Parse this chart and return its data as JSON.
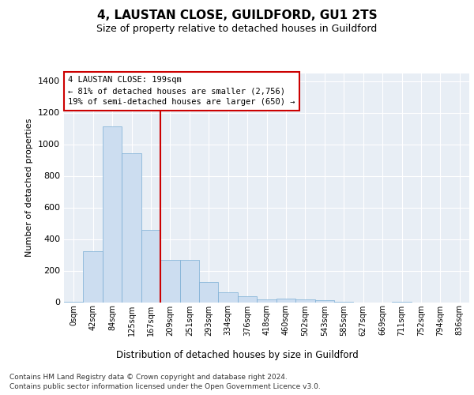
{
  "title": "4, LAUSTAN CLOSE, GUILDFORD, GU1 2TS",
  "subtitle": "Size of property relative to detached houses in Guildford",
  "xlabel": "Distribution of detached houses by size in Guildford",
  "ylabel": "Number of detached properties",
  "footnote1": "Contains HM Land Registry data © Crown copyright and database right 2024.",
  "footnote2": "Contains public sector information licensed under the Open Government Licence v3.0.",
  "bar_color": "#ccddf0",
  "bar_edge_color": "#7aadd4",
  "vline_color": "#cc0000",
  "vline_x": 4.5,
  "annotation_text": "4 LAUSTAN CLOSE: 199sqm\n← 81% of detached houses are smaller (2,756)\n19% of semi-detached houses are larger (650) →",
  "annotation_box_color": "#cc0000",
  "bin_labels": [
    "0sqm",
    "42sqm",
    "84sqm",
    "125sqm",
    "167sqm",
    "209sqm",
    "251sqm",
    "293sqm",
    "334sqm",
    "376sqm",
    "418sqm",
    "460sqm",
    "502sqm",
    "543sqm",
    "585sqm",
    "627sqm",
    "669sqm",
    "711sqm",
    "752sqm",
    "794sqm",
    "836sqm"
  ],
  "bar_heights": [
    5,
    325,
    1115,
    945,
    460,
    270,
    270,
    130,
    65,
    40,
    20,
    25,
    20,
    15,
    5,
    0,
    0,
    5,
    0,
    0,
    0
  ],
  "ylim": [
    0,
    1450
  ],
  "yticks": [
    0,
    200,
    400,
    600,
    800,
    1000,
    1200,
    1400
  ],
  "background_color": "#e8eef5",
  "plot_background": "#ffffff",
  "grid_color": "#ffffff",
  "title_fontsize": 11,
  "subtitle_fontsize": 9,
  "ylabel_fontsize": 8,
  "xlabel_fontsize": 8.5,
  "ytick_fontsize": 8,
  "xtick_fontsize": 7,
  "footnote_fontsize": 6.5
}
